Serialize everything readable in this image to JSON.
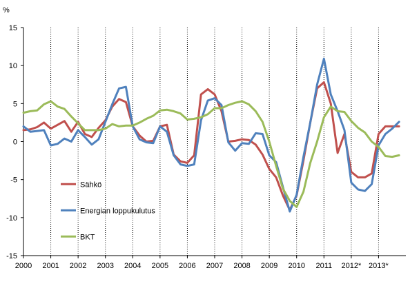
{
  "chart_data": {
    "type": "line",
    "title": "",
    "ylabel": "%",
    "xlabel": "",
    "ylim": [
      -15,
      15
    ],
    "yticks": [
      15,
      10,
      5,
      0,
      -5,
      -10,
      -15
    ],
    "xlim": [
      2000,
      2014
    ],
    "years": [
      "2000",
      "2001",
      "2002",
      "2003",
      "2004",
      "2005",
      "2006",
      "2007",
      "2008",
      "2009",
      "2010",
      "2011",
      "2012*",
      "2013*"
    ],
    "grid": "dotted vertical lines at year boundaries",
    "series": [
      {
        "name": "Sähkö",
        "color": "#c0504d",
        "x": [
          2000.0,
          2000.25,
          2000.5,
          2000.75,
          2001.0,
          2001.25,
          2001.5,
          2001.75,
          2002.0,
          2002.25,
          2002.5,
          2002.75,
          2003.0,
          2003.25,
          2003.5,
          2003.75,
          2004.0,
          2004.25,
          2004.5,
          2004.75,
          2005.0,
          2005.25,
          2005.5,
          2005.75,
          2006.0,
          2006.25,
          2006.5,
          2006.75,
          2007.0,
          2007.25,
          2007.5,
          2007.75,
          2008.0,
          2008.25,
          2008.5,
          2008.75,
          2009.0,
          2009.25,
          2009.5,
          2009.75,
          2010.0,
          2010.25,
          2010.5,
          2010.75,
          2011.0,
          2011.25,
          2011.5,
          2011.75,
          2012.0,
          2012.25,
          2012.5,
          2012.75,
          2013.0,
          2013.25,
          2013.5,
          2013.75
        ],
        "values": [
          1.5,
          1.6,
          1.9,
          2.5,
          1.7,
          2.2,
          2.7,
          1.3,
          2.6,
          1.0,
          0.6,
          1.8,
          2.8,
          4.6,
          5.6,
          5.2,
          2.0,
          0.8,
          0.0,
          0.1,
          2.0,
          2.2,
          -1.7,
          -2.6,
          -2.8,
          -1.8,
          6.2,
          6.9,
          6.2,
          4.0,
          0.0,
          0.1,
          0.3,
          0.2,
          -0.4,
          -1.7,
          -3.6,
          -4.7,
          -7.1,
          -9.0,
          -7.1,
          -2.5,
          2.5,
          7.0,
          7.8,
          5.0,
          -1.5,
          1.0,
          -4.0,
          -4.7,
          -4.7,
          -4.2,
          1.0,
          2.0,
          2.0,
          2.0
        ]
      },
      {
        "name": "Energian loppukulutus",
        "color": "#4f81bd",
        "x": [
          2000.0,
          2000.25,
          2000.5,
          2000.75,
          2001.0,
          2001.25,
          2001.5,
          2001.75,
          2002.0,
          2002.25,
          2002.5,
          2002.75,
          2003.0,
          2003.25,
          2003.5,
          2003.75,
          2004.0,
          2004.25,
          2004.5,
          2004.75,
          2005.0,
          2005.25,
          2005.5,
          2005.75,
          2006.0,
          2006.25,
          2006.5,
          2006.75,
          2007.0,
          2007.25,
          2007.5,
          2007.75,
          2008.0,
          2008.25,
          2008.5,
          2008.75,
          2009.0,
          2009.25,
          2009.5,
          2009.75,
          2010.0,
          2010.25,
          2010.5,
          2010.75,
          2011.0,
          2011.25,
          2011.5,
          2011.75,
          2012.0,
          2012.25,
          2012.5,
          2012.75,
          2013.0,
          2013.25,
          2013.5,
          2013.75
        ],
        "values": [
          2.0,
          1.3,
          1.4,
          1.5,
          -0.5,
          -0.3,
          0.4,
          0.0,
          1.5,
          0.6,
          -0.4,
          0.3,
          2.6,
          4.9,
          7.0,
          7.2,
          2.0,
          0.3,
          -0.1,
          -0.2,
          2.0,
          1.3,
          -1.8,
          -3.0,
          -3.2,
          -3.0,
          2.8,
          5.4,
          5.7,
          4.8,
          -0.1,
          -1.2,
          -0.2,
          -0.3,
          1.1,
          1.0,
          -1.8,
          -2.7,
          -6.0,
          -9.2,
          -7.0,
          -2.0,
          2.5,
          7.5,
          10.9,
          6.2,
          4.0,
          1.5,
          -5.4,
          -6.3,
          -6.5,
          -5.6,
          -0.5,
          1.0,
          1.7,
          2.6
        ]
      },
      {
        "name": "BKT",
        "color": "#9bbb59",
        "x": [
          2000.0,
          2000.25,
          2000.5,
          2000.75,
          2001.0,
          2001.25,
          2001.5,
          2001.75,
          2002.0,
          2002.25,
          2002.5,
          2002.75,
          2003.0,
          2003.25,
          2003.5,
          2003.75,
          2004.0,
          2004.25,
          2004.5,
          2004.75,
          2005.0,
          2005.25,
          2005.5,
          2005.75,
          2006.0,
          2006.25,
          2006.5,
          2006.75,
          2007.0,
          2007.25,
          2007.5,
          2007.75,
          2008.0,
          2008.25,
          2008.5,
          2008.75,
          2009.0,
          2009.25,
          2009.5,
          2009.75,
          2010.0,
          2010.25,
          2010.5,
          2010.75,
          2011.0,
          2011.25,
          2011.5,
          2011.75,
          2012.0,
          2012.25,
          2012.5,
          2012.75,
          2013.0,
          2013.25,
          2013.5,
          2013.75
        ],
        "values": [
          3.8,
          4.0,
          4.1,
          4.9,
          5.3,
          4.6,
          4.3,
          3.3,
          2.4,
          1.5,
          1.5,
          1.5,
          1.7,
          2.3,
          2.0,
          2.1,
          2.1,
          2.5,
          3.0,
          3.4,
          4.1,
          4.2,
          4.0,
          3.7,
          2.9,
          3.0,
          3.2,
          3.6,
          4.4,
          4.4,
          4.8,
          5.1,
          5.3,
          4.9,
          4.0,
          2.6,
          0.0,
          -3.2,
          -6.2,
          -7.8,
          -8.6,
          -6.6,
          -2.8,
          0.0,
          3.2,
          4.6,
          4.0,
          3.9,
          2.7,
          1.8,
          1.2,
          0.0,
          -0.7,
          -1.9,
          -2.0,
          -1.8
        ]
      }
    ]
  }
}
